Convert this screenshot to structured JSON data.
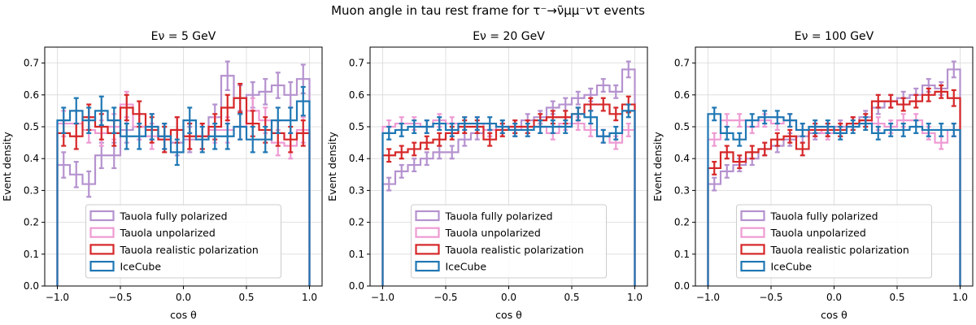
{
  "figure": {
    "suptitle": "Muon angle in tau rest frame for τ⁻→ν̄μμ⁻ντ events"
  },
  "legend_entries": [
    "Tauola fully polarized",
    "Tauola unpolarized",
    "Tauola realistic polarization",
    "IceCube"
  ],
  "colors": {
    "fully_polarized": "#b592cf",
    "unpolarized": "#ee9bd3",
    "realistic": "#d62728",
    "icecube": "#1f77b4",
    "grid": "#d9d9d9"
  },
  "chart_data": [
    {
      "type": "histogram",
      "title": "Eν = 5 GeV",
      "xlabel": "cos θ",
      "ylabel": "Event density",
      "xlim": [
        -1.1,
        1.1
      ],
      "ylim": [
        0.0,
        0.75
      ],
      "xticks": [
        -1.0,
        -0.5,
        0.0,
        0.5,
        1.0
      ],
      "yticks": [
        0.0,
        0.1,
        0.2,
        0.3,
        0.4,
        0.5,
        0.6,
        0.7
      ],
      "grid": true,
      "legend_loc": "lower center",
      "bin_edges": [
        -1.0,
        -0.9,
        -0.8,
        -0.7,
        -0.6,
        -0.5,
        -0.4,
        -0.3,
        -0.2,
        -0.1,
        0.0,
        0.1,
        0.2,
        0.3,
        0.4,
        0.5,
        0.6,
        0.7,
        0.8,
        0.9,
        1.0
      ],
      "series": [
        {
          "name": "Tauola fully polarized",
          "values": [
            0.38,
            0.35,
            0.32,
            0.41,
            0.41,
            0.49,
            0.5,
            0.5,
            0.47,
            0.45,
            0.46,
            0.47,
            0.53,
            0.66,
            0.59,
            0.6,
            0.61,
            0.63,
            0.6,
            0.65
          ],
          "errors": [
            0.04,
            0.04,
            0.04,
            0.04,
            0.04,
            0.04,
            0.04,
            0.04,
            0.04,
            0.04,
            0.04,
            0.04,
            0.04,
            0.045,
            0.04,
            0.04,
            0.04,
            0.04,
            0.04,
            0.045
          ]
        },
        {
          "name": "Tauola unpolarized",
          "values": [
            0.51,
            0.51,
            0.49,
            0.48,
            0.5,
            0.57,
            0.5,
            0.47,
            0.46,
            0.49,
            0.47,
            0.47,
            0.49,
            0.49,
            0.5,
            0.55,
            0.52,
            0.45,
            0.44,
            0.49
          ],
          "errors": [
            0.04,
            0.04,
            0.04,
            0.04,
            0.04,
            0.04,
            0.04,
            0.04,
            0.04,
            0.04,
            0.04,
            0.04,
            0.04,
            0.04,
            0.04,
            0.04,
            0.04,
            0.04,
            0.04,
            0.04
          ]
        },
        {
          "name": "Tauola realistic polarization",
          "values": [
            0.48,
            0.47,
            0.53,
            0.5,
            0.48,
            0.56,
            0.54,
            0.49,
            0.46,
            0.49,
            0.47,
            0.47,
            0.5,
            0.56,
            0.59,
            0.51,
            0.49,
            0.48,
            0.46,
            0.48
          ],
          "errors": [
            0.04,
            0.04,
            0.04,
            0.04,
            0.04,
            0.04,
            0.04,
            0.04,
            0.04,
            0.04,
            0.04,
            0.04,
            0.04,
            0.04,
            0.045,
            0.04,
            0.04,
            0.04,
            0.04,
            0.04
          ]
        },
        {
          "name": "IceCube",
          "values": [
            0.52,
            0.55,
            0.52,
            0.55,
            0.52,
            0.47,
            0.47,
            0.5,
            0.47,
            0.42,
            0.52,
            0.46,
            0.47,
            0.47,
            0.5,
            0.46,
            0.46,
            0.52,
            0.52,
            0.58
          ],
          "errors": [
            0.04,
            0.04,
            0.04,
            0.045,
            0.04,
            0.04,
            0.04,
            0.04,
            0.04,
            0.04,
            0.04,
            0.04,
            0.04,
            0.04,
            0.04,
            0.04,
            0.04,
            0.04,
            0.04,
            0.045
          ]
        }
      ]
    },
    {
      "type": "histogram",
      "title": "Eν = 20 GeV",
      "xlabel": "cos θ",
      "ylabel": "Event density",
      "xlim": [
        -1.1,
        1.1
      ],
      "ylim": [
        0.0,
        0.75
      ],
      "xticks": [
        -1.0,
        -0.5,
        0.0,
        0.5,
        1.0
      ],
      "yticks": [
        0.0,
        0.1,
        0.2,
        0.3,
        0.4,
        0.5,
        0.6,
        0.7
      ],
      "grid": true,
      "legend_loc": "lower center",
      "bin_edges": [
        -1.0,
        -0.9,
        -0.8,
        -0.7,
        -0.6,
        -0.5,
        -0.4,
        -0.3,
        -0.2,
        -0.1,
        0.0,
        0.1,
        0.2,
        0.3,
        0.4,
        0.5,
        0.6,
        0.7,
        0.8,
        0.9,
        1.0
      ],
      "series": [
        {
          "name": "Tauola fully polarized",
          "values": [
            0.32,
            0.36,
            0.38,
            0.4,
            0.42,
            0.42,
            0.46,
            0.48,
            0.49,
            0.5,
            0.5,
            0.52,
            0.53,
            0.56,
            0.57,
            0.59,
            0.6,
            0.63,
            0.61,
            0.68
          ],
          "errors": [
            0.02,
            0.02,
            0.02,
            0.02,
            0.02,
            0.02,
            0.02,
            0.02,
            0.02,
            0.02,
            0.02,
            0.02,
            0.02,
            0.02,
            0.02,
            0.02,
            0.02,
            0.02,
            0.02,
            0.025
          ]
        },
        {
          "name": "Tauola unpolarized",
          "values": [
            0.5,
            0.51,
            0.51,
            0.5,
            0.52,
            0.51,
            0.51,
            0.51,
            0.49,
            0.49,
            0.49,
            0.5,
            0.5,
            0.48,
            0.51,
            0.51,
            0.49,
            0.47,
            0.45,
            0.49
          ],
          "errors": [
            0.02,
            0.02,
            0.02,
            0.02,
            0.02,
            0.02,
            0.02,
            0.02,
            0.02,
            0.02,
            0.02,
            0.02,
            0.02,
            0.02,
            0.02,
            0.02,
            0.02,
            0.02,
            0.02,
            0.02
          ]
        },
        {
          "name": "Tauola realistic polarization",
          "values": [
            0.41,
            0.42,
            0.43,
            0.45,
            0.46,
            0.48,
            0.5,
            0.5,
            0.46,
            0.49,
            0.5,
            0.5,
            0.52,
            0.53,
            0.53,
            0.54,
            0.57,
            0.57,
            0.54,
            0.57
          ],
          "errors": [
            0.02,
            0.02,
            0.02,
            0.02,
            0.02,
            0.02,
            0.02,
            0.02,
            0.02,
            0.02,
            0.02,
            0.02,
            0.02,
            0.02,
            0.02,
            0.02,
            0.02,
            0.02,
            0.02,
            0.025
          ]
        },
        {
          "name": "IceCube",
          "values": [
            0.48,
            0.49,
            0.5,
            0.5,
            0.51,
            0.49,
            0.51,
            0.51,
            0.51,
            0.5,
            0.49,
            0.49,
            0.5,
            0.5,
            0.5,
            0.54,
            0.53,
            0.47,
            0.48,
            0.55
          ],
          "errors": [
            0.02,
            0.02,
            0.02,
            0.02,
            0.02,
            0.02,
            0.02,
            0.02,
            0.02,
            0.02,
            0.02,
            0.02,
            0.02,
            0.02,
            0.02,
            0.02,
            0.02,
            0.02,
            0.02,
            0.02
          ]
        }
      ]
    },
    {
      "type": "histogram",
      "title": "Eν = 100 GeV",
      "xlabel": "cos θ",
      "ylabel": "Event density",
      "xlim": [
        -1.1,
        1.1
      ],
      "ylim": [
        0.0,
        0.75
      ],
      "xticks": [
        -1.0,
        -0.5,
        0.0,
        0.5,
        1.0
      ],
      "yticks": [
        0.0,
        0.1,
        0.2,
        0.3,
        0.4,
        0.5,
        0.6,
        0.7
      ],
      "grid": true,
      "legend_loc": "lower center",
      "bin_edges": [
        -1.0,
        -0.9,
        -0.8,
        -0.7,
        -0.6,
        -0.5,
        -0.4,
        -0.3,
        -0.2,
        -0.1,
        0.0,
        0.1,
        0.2,
        0.3,
        0.4,
        0.5,
        0.6,
        0.7,
        0.8,
        0.9,
        1.0
      ],
      "series": [
        {
          "name": "Tauola fully polarized",
          "values": [
            0.32,
            0.36,
            0.38,
            0.4,
            0.43,
            0.44,
            0.46,
            0.47,
            0.48,
            0.49,
            0.5,
            0.51,
            0.53,
            0.56,
            0.58,
            0.59,
            0.6,
            0.63,
            0.62,
            0.68
          ],
          "errors": [
            0.02,
            0.02,
            0.02,
            0.02,
            0.02,
            0.02,
            0.02,
            0.02,
            0.02,
            0.02,
            0.02,
            0.02,
            0.02,
            0.02,
            0.02,
            0.02,
            0.02,
            0.02,
            0.02,
            0.025
          ]
        },
        {
          "name": "Tauola unpolarized",
          "values": [
            0.46,
            0.52,
            0.52,
            0.5,
            0.52,
            0.51,
            0.52,
            0.49,
            0.49,
            0.48,
            0.49,
            0.51,
            0.52,
            0.51,
            0.5,
            0.52,
            0.52,
            0.48,
            0.45,
            0.49
          ],
          "errors": [
            0.02,
            0.02,
            0.02,
            0.02,
            0.02,
            0.02,
            0.02,
            0.02,
            0.02,
            0.02,
            0.02,
            0.02,
            0.02,
            0.02,
            0.02,
            0.02,
            0.02,
            0.02,
            0.02,
            0.02
          ]
        },
        {
          "name": "Tauola realistic polarization",
          "values": [
            0.37,
            0.42,
            0.39,
            0.42,
            0.43,
            0.46,
            0.47,
            0.43,
            0.49,
            0.49,
            0.49,
            0.51,
            0.52,
            0.58,
            0.58,
            0.57,
            0.58,
            0.6,
            0.61,
            0.59
          ],
          "errors": [
            0.02,
            0.02,
            0.02,
            0.02,
            0.02,
            0.02,
            0.02,
            0.02,
            0.02,
            0.02,
            0.02,
            0.02,
            0.02,
            0.02,
            0.02,
            0.02,
            0.02,
            0.02,
            0.02,
            0.025
          ]
        },
        {
          "name": "IceCube",
          "values": [
            0.54,
            0.48,
            0.46,
            0.52,
            0.53,
            0.53,
            0.52,
            0.49,
            0.5,
            0.5,
            0.48,
            0.5,
            0.51,
            0.48,
            0.49,
            0.49,
            0.5,
            0.49,
            0.49,
            0.49
          ],
          "errors": [
            0.02,
            0.02,
            0.02,
            0.02,
            0.02,
            0.02,
            0.02,
            0.02,
            0.02,
            0.02,
            0.02,
            0.02,
            0.02,
            0.02,
            0.02,
            0.02,
            0.02,
            0.02,
            0.02,
            0.02
          ]
        }
      ]
    }
  ]
}
